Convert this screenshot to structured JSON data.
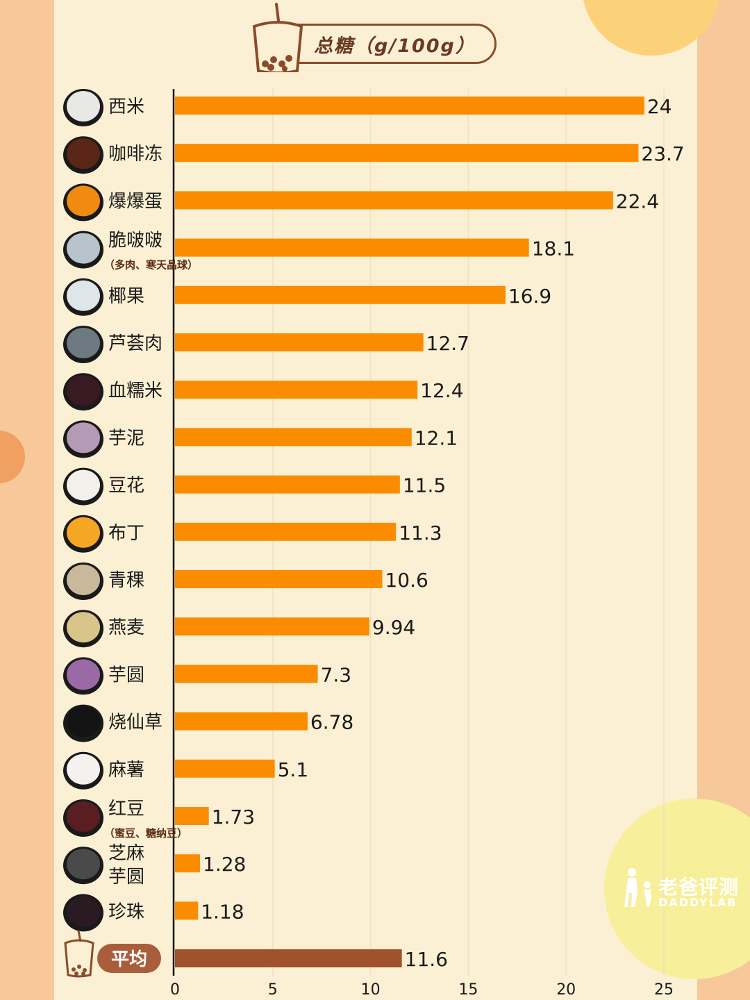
{
  "header": {
    "title": "总糖（g/100g）"
  },
  "brand": {
    "name": "老爸评测",
    "name_en": "DADDYLAB"
  },
  "colors": {
    "bar": "#fb8c00",
    "average_bar": "#a0522d",
    "average_pill": "#a95d3a",
    "text": "#1a1a1a",
    "subtext": "#5a2c14"
  },
  "chart_data": {
    "type": "bar",
    "orientation": "horizontal",
    "title": "总糖（g/100g）",
    "xlim": [
      0,
      25
    ],
    "x_ticks": [
      "0",
      "5",
      "10",
      "15",
      "20",
      "25"
    ],
    "grid": true,
    "categories": [
      {
        "label": "西米",
        "sub": "",
        "value": 24,
        "value_label": "24"
      },
      {
        "label": "咖啡冻",
        "sub": "",
        "value": 23.7,
        "value_label": "23.7"
      },
      {
        "label": "爆爆蛋",
        "sub": "",
        "value": 22.4,
        "value_label": "22.4"
      },
      {
        "label": "脆啵啵",
        "sub": "（多肉、寒天晶球）",
        "value": 18.1,
        "value_label": "18.1"
      },
      {
        "label": "椰果",
        "sub": "",
        "value": 16.9,
        "value_label": "16.9"
      },
      {
        "label": "芦荟肉",
        "sub": "",
        "value": 12.7,
        "value_label": "12.7"
      },
      {
        "label": "血糯米",
        "sub": "",
        "value": 12.4,
        "value_label": "12.4"
      },
      {
        "label": "芋泥",
        "sub": "",
        "value": 12.1,
        "value_label": "12.1"
      },
      {
        "label": "豆花",
        "sub": "",
        "value": 11.5,
        "value_label": "11.5"
      },
      {
        "label": "布丁",
        "sub": "",
        "value": 11.3,
        "value_label": "11.3"
      },
      {
        "label": "青稞",
        "sub": "",
        "value": 10.6,
        "value_label": "10.6"
      },
      {
        "label": "燕麦",
        "sub": "",
        "value": 9.94,
        "value_label": "9.94"
      },
      {
        "label": "芋圆",
        "sub": "",
        "value": 7.3,
        "value_label": "7.3"
      },
      {
        "label": "烧仙草",
        "sub": "",
        "value": 6.78,
        "value_label": "6.78"
      },
      {
        "label": "麻薯",
        "sub": "",
        "value": 5.1,
        "value_label": "5.1"
      },
      {
        "label": "红豆",
        "sub": "（蜜豆、糖纳豆）",
        "value": 1.73,
        "value_label": "1.73"
      },
      {
        "label": "芝麻芋圆",
        "sub": "",
        "value": 1.28,
        "value_label": "1.28"
      },
      {
        "label": "珍珠",
        "sub": "",
        "value": 1.18,
        "value_label": "1.18"
      }
    ],
    "average": {
      "label": "平均",
      "value": 11.6,
      "value_label": "11.6"
    },
    "thumb_colors": [
      "#e8e8e4",
      "#5a2616",
      "#f08a10",
      "#b8c4cc",
      "#dfe6ea",
      "#6d7a82",
      "#3a1a22",
      "#b49ab4",
      "#f2f0ea",
      "#f5a623",
      "#c9b89a",
      "#d9c48a",
      "#9b6aa6",
      "#141414",
      "#f4f2ee",
      "#5a1e22",
      "#4a4a4a",
      "#2a1a22"
    ]
  }
}
